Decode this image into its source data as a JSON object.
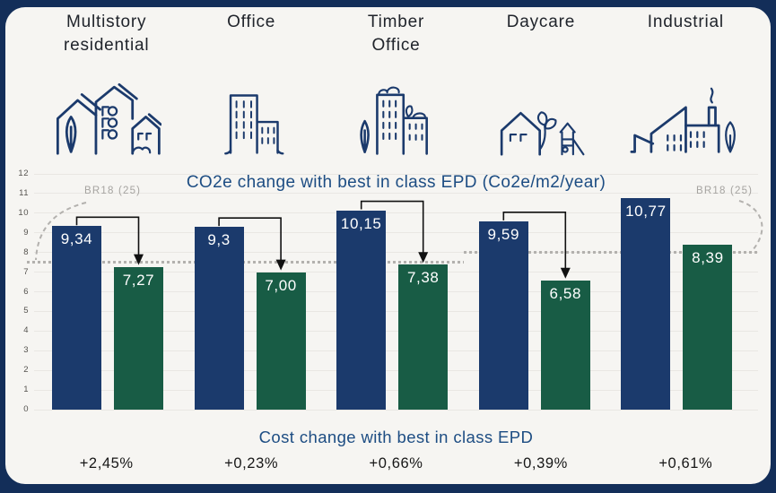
{
  "frame": {
    "background": "#132e59",
    "panel_background": "#f6f5f2"
  },
  "header": {
    "groups": [
      {
        "label": "Multistory\nresidential",
        "icon": "residential-buildings-icon"
      },
      {
        "label": "Office",
        "icon": "office-buildings-icon"
      },
      {
        "label": "Timber\nOffice",
        "icon": "timber-office-icon"
      },
      {
        "label": "Daycare",
        "icon": "daycare-house-icon"
      },
      {
        "label": "Industrial",
        "icon": "factory-icon"
      }
    ]
  },
  "chart_data": {
    "type": "bar",
    "title": "CO2e change with best in class EPD (Co2e/m2/year)",
    "categories": [
      "Multistory residential",
      "Office",
      "Timber Office",
      "Daycare",
      "Industrial"
    ],
    "series": [
      {
        "name": "blue",
        "color": "#1b3a6c",
        "values": [
          9.34,
          9.3,
          10.15,
          9.59,
          10.77
        ],
        "labels": [
          "9,34",
          "9,3",
          "10,15",
          "9,59",
          "10,77"
        ]
      },
      {
        "name": "green",
        "color": "#185c45",
        "values": [
          7.27,
          7.0,
          7.38,
          6.58,
          8.39
        ],
        "labels": [
          "7,27",
          "7,00",
          "7,38",
          "6,58",
          "8,39"
        ]
      }
    ],
    "ylim": [
      0,
      12
    ],
    "yticks": [
      0,
      1,
      2,
      3,
      4,
      5,
      6,
      7,
      8,
      9,
      10,
      11,
      12
    ],
    "grid": true,
    "legend": "none",
    "reference_line": {
      "label": "BR18 (25)",
      "color": "#b3b1ae",
      "segments": [
        {
          "value": 7.5,
          "from_group": 0,
          "to_group": 2
        },
        {
          "value": 8.0,
          "from_group": 3,
          "to_group": 4
        }
      ]
    },
    "arrows": {
      "color": "#111111",
      "pairs": [
        0,
        1,
        2,
        3
      ]
    }
  },
  "cost": {
    "title": "Cost change with best in class EPD",
    "values": [
      "+2,45%",
      "+0,23%",
      "+0,66%",
      "+0,39%",
      "+0,61%"
    ]
  },
  "colors": {
    "title_blue": "#1d4d83",
    "bar_blue": "#1b3a6c",
    "bar_green": "#185c45",
    "icon_stroke": "#1b3a6c",
    "axis_text": "#55534f",
    "percent_text": "#171717",
    "header_text": "#20242b",
    "reference_gray": "#b3b1ae"
  }
}
